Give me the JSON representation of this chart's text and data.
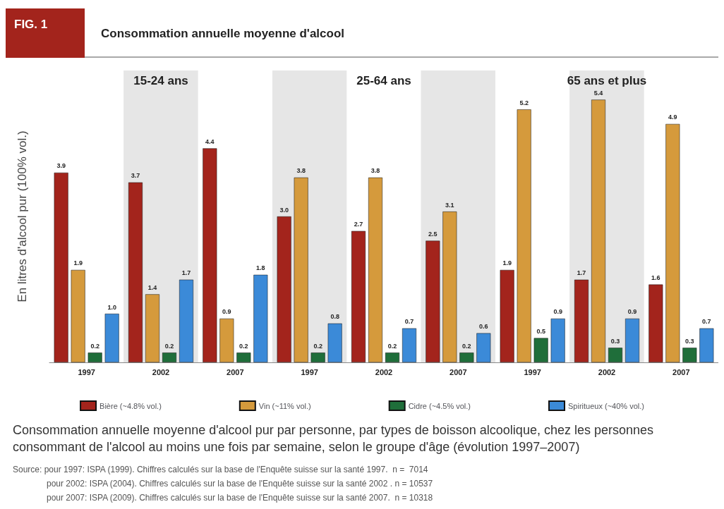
{
  "chart_data": {
    "type": "bar",
    "title": "Consommation annuelle moyenne d'alcool",
    "subtitle": "Consommation annuelle moyenne d'alcool pur par personne, par types de boisson alcoolique, chez les personnes consommant de l'alcool au moins une fois par semaine, selon le groupe d'âge (évolution 1997–2007)",
    "ylabel": "En litres d'alcool pur (100% vol.)",
    "categories": [
      "1997",
      "2002",
      "2007",
      "1997",
      "2002",
      "2007",
      "1997",
      "2002",
      "2007"
    ],
    "series": [
      {
        "name": "Bière (~4.8% vol.)",
        "color": "#a3241c",
        "values": [
          3.9,
          3.7,
          4.4,
          3.0,
          2.7,
          2.5,
          1.9,
          1.7,
          1.6
        ],
        "value_labels": [
          "3.9",
          "3.7",
          "4.4",
          "3.0",
          "2.7",
          "2.5",
          "1.9",
          "1.7",
          "1.6"
        ]
      },
      {
        "name": "Vin (~11% vol.)",
        "color": "#d59a3c",
        "values": [
          1.9,
          1.4,
          0.9,
          3.8,
          3.8,
          3.1,
          5.2,
          5.4,
          4.9
        ],
        "value_labels": [
          "1.9",
          "1.4",
          "0.9",
          "3.8",
          "3.8",
          "3.1",
          "5.2",
          "5.4",
          "4.9"
        ]
      },
      {
        "name": "Cidre (~4.5% vol.)",
        "color": "#1f6e3a",
        "values": [
          0.2,
          0.2,
          0.2,
          0.2,
          0.2,
          0.2,
          0.5,
          0.3,
          0.3
        ],
        "value_labels": [
          "0.2",
          "0.2",
          "0.2",
          "0.2",
          "0.2",
          "0.2",
          "0.5",
          "0.3",
          "0.3"
        ]
      },
      {
        "name": "Spiritueux (~40% vol.)",
        "color": "#3b8ad8",
        "values": [
          1.0,
          1.7,
          1.8,
          0.8,
          0.7,
          0.6,
          0.9,
          0.9,
          0.7
        ],
        "value_labels": [
          "1.0",
          "1.7",
          "1.8",
          "0.8",
          "0.7",
          "0.6",
          "0.9",
          "0.9",
          "0.7"
        ]
      }
    ],
    "relative": false,
    "legend": "bottom",
    "grid": false,
    "annotations": [
      "FIG. 1",
      "15-24 ans",
      "25-64 ans",
      "65 ans et plus",
      "Source: pour 1997: ISPA (1999). Chiffres calculés sur la base de l'Enquête suisse sur la santé 1997.  n =  7014",
      "pour 2002: ISPA (2004). Chiffres calculés sur la base de l'Enquête suisse sur la santé 2002 . n = 10537",
      "pour 2007: ISPA (2009). Chiffres calculés sur la base de l'Enquête suisse sur la santé 2007.  n = 10318"
    ]
  }
}
